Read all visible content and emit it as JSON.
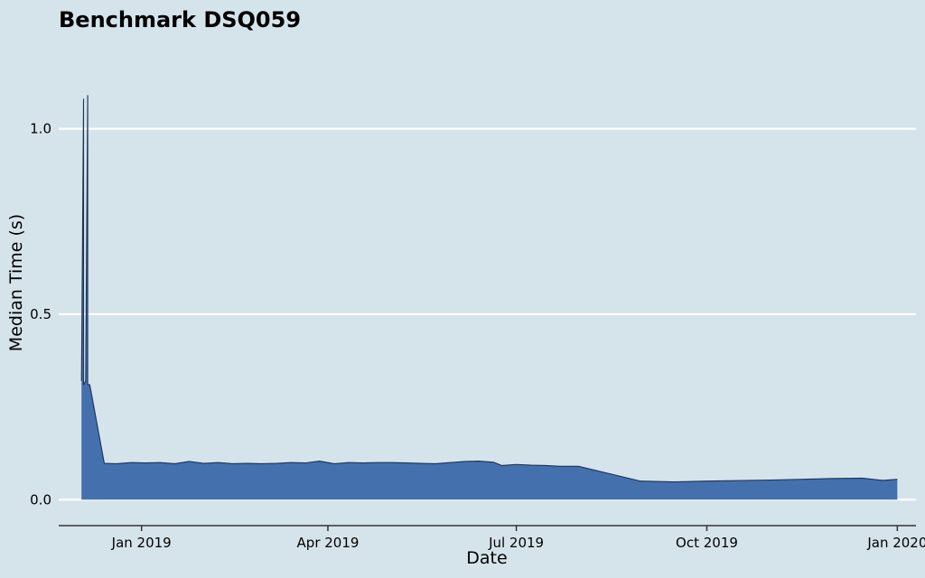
{
  "chart_data": {
    "type": "area",
    "title": "Benchmark DSQ059",
    "xlabel": "Date",
    "ylabel": "Median Time (s)",
    "x_range": [
      "2018-11-22",
      "2020-01-10"
    ],
    "ylim": [
      -0.07,
      1.25
    ],
    "grid": "horizontal",
    "fill_color": "#4470ae",
    "line_color": "#1f3357",
    "background_color": "#d5e4eb",
    "x_ticks": [
      {
        "date": "2019-01-01",
        "label": "Jan 2019"
      },
      {
        "date": "2019-04-01",
        "label": "Apr 2019"
      },
      {
        "date": "2019-07-01",
        "label": "Jul 2019"
      },
      {
        "date": "2019-10-01",
        "label": "Oct 2019"
      },
      {
        "date": "2020-01-01",
        "label": "Jan 2020"
      }
    ],
    "y_ticks": [
      {
        "value": 0.0,
        "label": "0.0"
      },
      {
        "value": 0.5,
        "label": "0.5"
      },
      {
        "value": 1.0,
        "label": "1.0"
      }
    ],
    "series": [
      {
        "points": [
          [
            "2018-12-03",
            0.32
          ],
          [
            "2018-12-04",
            1.08
          ],
          [
            "2018-12-04",
            0.31
          ],
          [
            "2018-12-05",
            0.32
          ],
          [
            "2018-12-06",
            1.09
          ],
          [
            "2018-12-06",
            0.31
          ],
          [
            "2018-12-07",
            0.31
          ],
          [
            "2018-12-14",
            0.098
          ],
          [
            "2018-12-20",
            0.097
          ],
          [
            "2018-12-27",
            0.1
          ],
          [
            "2019-01-03",
            0.099
          ],
          [
            "2019-01-10",
            0.1
          ],
          [
            "2019-01-17",
            0.097
          ],
          [
            "2019-01-24",
            0.103
          ],
          [
            "2019-01-31",
            0.098
          ],
          [
            "2019-02-07",
            0.1
          ],
          [
            "2019-02-14",
            0.097
          ],
          [
            "2019-02-21",
            0.098
          ],
          [
            "2019-02-28",
            0.097
          ],
          [
            "2019-03-07",
            0.098
          ],
          [
            "2019-03-14",
            0.1
          ],
          [
            "2019-03-21",
            0.099
          ],
          [
            "2019-03-28",
            0.104
          ],
          [
            "2019-04-04",
            0.097
          ],
          [
            "2019-04-11",
            0.1
          ],
          [
            "2019-04-18",
            0.099
          ],
          [
            "2019-04-25",
            0.1
          ],
          [
            "2019-05-02",
            0.1
          ],
          [
            "2019-05-09",
            0.099
          ],
          [
            "2019-05-16",
            0.098
          ],
          [
            "2019-05-23",
            0.097
          ],
          [
            "2019-05-30",
            0.1
          ],
          [
            "2019-06-06",
            0.103
          ],
          [
            "2019-06-13",
            0.104
          ],
          [
            "2019-06-20",
            0.101
          ],
          [
            "2019-06-24",
            0.092
          ],
          [
            "2019-07-01",
            0.095
          ],
          [
            "2019-07-08",
            0.093
          ],
          [
            "2019-07-15",
            0.092
          ],
          [
            "2019-07-22",
            0.09
          ],
          [
            "2019-07-31",
            0.09
          ],
          [
            "2019-08-30",
            0.05
          ],
          [
            "2019-09-15",
            0.048
          ],
          [
            "2019-10-01",
            0.05
          ],
          [
            "2019-11-01",
            0.053
          ],
          [
            "2019-12-01",
            0.057
          ],
          [
            "2019-12-15",
            0.058
          ],
          [
            "2019-12-25",
            0.052
          ],
          [
            "2020-01-01",
            0.055
          ]
        ]
      }
    ]
  }
}
